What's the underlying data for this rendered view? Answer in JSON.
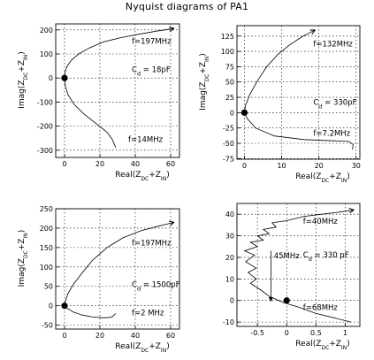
{
  "title": "Nyquist diagrams of PA1",
  "chart_data": [
    {
      "type": "line",
      "xlabel": "Real(ZDC+ZIN)",
      "ylabel": "Imag(ZDC+ZIN)",
      "xlim": [
        -5,
        65
      ],
      "ylim": [
        -330,
        225
      ],
      "xticks": [
        0,
        20,
        40,
        60
      ],
      "yticks": [
        -300,
        -200,
        -100,
        0,
        100,
        200
      ],
      "grid": true,
      "series": [
        {
          "x": [
            29,
            27,
            24,
            18,
            11,
            5.5,
            2,
            0.5,
            0,
            0.3,
            1.5,
            4,
            8,
            14,
            22,
            32,
            42,
            52,
            62
          ],
          "y": [
            -290,
            -255,
            -225,
            -190,
            -150,
            -110,
            -70,
            -35,
            0,
            25,
            50,
            75,
            100,
            125,
            150,
            168,
            182,
            195,
            206
          ]
        }
      ],
      "marker": {
        "x": 0,
        "y": 0
      },
      "annotations": [
        {
          "text": "f=197MHz",
          "x": 38,
          "y": 142
        },
        {
          "text": "Cd = 18pF",
          "x": 38,
          "y": 25
        },
        {
          "text": "f=14MHz",
          "x": 36,
          "y": -265
        }
      ]
    },
    {
      "type": "line",
      "xlabel": "Real(ZDC+ZIN)",
      "ylabel": "Imag(ZDC+ZIN)",
      "xlim": [
        -2,
        31
      ],
      "ylim": [
        -76,
        142
      ],
      "xticks": [
        0,
        10,
        20,
        30
      ],
      "yticks": [
        -75,
        -50,
        -25,
        0,
        25,
        50,
        75,
        100,
        125
      ],
      "grid": true,
      "series": [
        {
          "x": [
            29,
            29.2,
            28,
            24,
            16,
            8,
            3,
            0.8,
            0,
            0.3,
            1.5,
            3.5,
            6,
            9,
            12,
            15.5,
            19
          ],
          "y": [
            -60,
            -52,
            -47,
            -46,
            -44,
            -38,
            -25,
            -10,
            0,
            12,
            30,
            52,
            75,
            95,
            110,
            124,
            135
          ]
        }
      ],
      "marker": {
        "x": 0,
        "y": 0
      },
      "annotations": [
        {
          "text": "f=132MHz",
          "x": 18.5,
          "y": 108
        },
        {
          "text": "Cd = 330pF",
          "x": 18.5,
          "y": 13
        },
        {
          "text": "f=7.2MHz",
          "x": 18.5,
          "y": -38
        }
      ]
    },
    {
      "type": "line",
      "xlabel": "Real(ZDC+ZIN)",
      "ylabel": "Imag(ZDC+ZIN)",
      "xlim": [
        -5,
        65
      ],
      "ylim": [
        -60,
        250
      ],
      "xticks": [
        0,
        20,
        40,
        60
      ],
      "yticks": [
        -50,
        0,
        50,
        100,
        150,
        200,
        250
      ],
      "grid": true,
      "series": [
        {
          "x": [
            29,
            28,
            27,
            26,
            22,
            16,
            10,
            5,
            2,
            0.3,
            0,
            0.5,
            2,
            5,
            10,
            16,
            24,
            33,
            43,
            53,
            62
          ],
          "y": [
            -20,
            -24,
            -28,
            -30,
            -31,
            -29,
            -24,
            -16,
            -8,
            -2,
            0,
            12,
            32,
            55,
            85,
            118,
            150,
            175,
            193,
            205,
            215
          ]
        }
      ],
      "marker": {
        "x": 0,
        "y": 0
      },
      "annotations": [
        {
          "text": "f=197MHz",
          "x": 38,
          "y": 155
        },
        {
          "text": "Cd = 1500pF",
          "x": 38,
          "y": 48
        },
        {
          "text": "f=2 MHz",
          "x": 38,
          "y": -25
        }
      ]
    },
    {
      "type": "line",
      "xlabel": "Real(ZDC+ZIN)",
      "ylabel": "",
      "xlim": [
        -0.85,
        1.25
      ],
      "ylim": [
        -12,
        45
      ],
      "xticks": [
        -0.5,
        0,
        0.5,
        1
      ],
      "yticks": [
        -10,
        0,
        10,
        20,
        30,
        40
      ],
      "grid": true,
      "series": [
        {
          "x": [
            1.1,
            0.8,
            0.5,
            0.2,
            -0.05,
            -0.3,
            -0.45,
            -0.62,
            -0.52,
            -0.66,
            -0.52,
            -0.7,
            -0.55,
            -0.72,
            -0.5,
            -0.62,
            -0.4,
            -0.5,
            -0.3,
            -0.4,
            -0.18,
            -0.25,
            0.0,
            0.3,
            0.6,
            0.9,
            1.15
          ],
          "y": [
            -10,
            -8,
            -6,
            -3,
            -1,
            2,
            5,
            8,
            10,
            13,
            15,
            18,
            21,
            23,
            25,
            27,
            28,
            30,
            31,
            33,
            34,
            36,
            37,
            39,
            40,
            41,
            42
          ]
        }
      ],
      "marker": {
        "x": 0,
        "y": 0
      },
      "annotations": [
        {
          "text": "f=40MHz",
          "x": 0.28,
          "y": 35.5
        },
        {
          "text": "45MHz",
          "x": -0.22,
          "y": 19.5
        },
        {
          "text": "Cd = 330 pF",
          "x": 0.28,
          "y": 20
        },
        {
          "text": "f=68MHz",
          "x": 0.28,
          "y": -4.5
        }
      ]
    }
  ]
}
